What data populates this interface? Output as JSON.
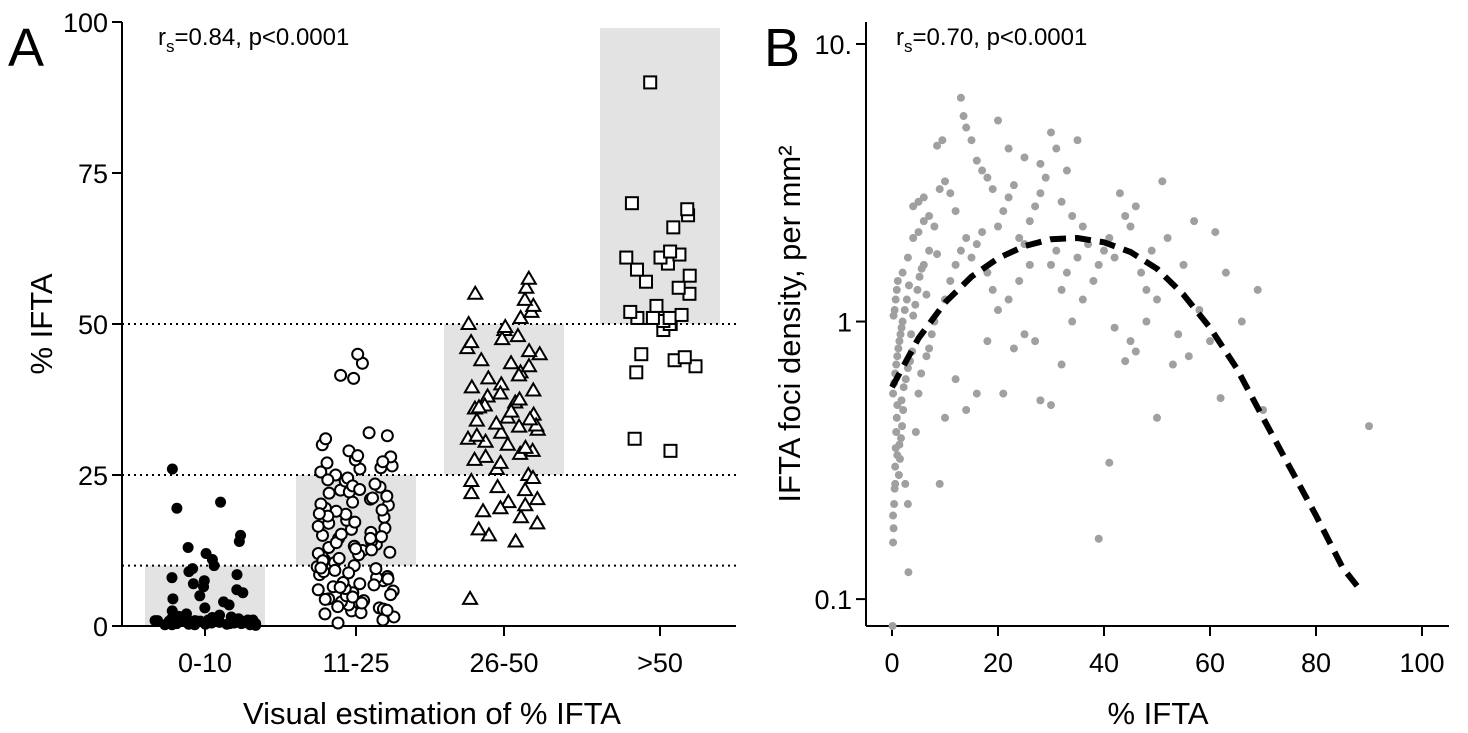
{
  "chart_data": [
    {
      "panel": "A",
      "type": "scatter",
      "chart_subtype": "categorical dot plot with shaded range boxes",
      "annotation": {
        "prefix": "r",
        "subscript": "s",
        "suffix": "=0.84, p<0.0001"
      },
      "xlabel": "Visual estimation of % IFTA",
      "ylabel": "% IFTA",
      "ylim": [
        0,
        100
      ],
      "yticks": [
        0,
        25,
        50,
        75,
        100
      ],
      "categories": [
        "0-10",
        "11-25",
        "26-50",
        ">50"
      ],
      "reference_lines": [
        10,
        25,
        50
      ],
      "shaded_ranges": [
        {
          "category": "0-10",
          "ymin": 0,
          "ymax": 10
        },
        {
          "category": "11-25",
          "ymin": 10,
          "ymax": 25
        },
        {
          "category": "26-50",
          "ymin": 25,
          "ymax": 50
        },
        {
          "category": ">50",
          "ymin": 50,
          "ymax": 99
        }
      ],
      "series": [
        {
          "category": "0-10",
          "marker": "filled-circle",
          "values": [
            0.2,
            0.4,
            0.6,
            0.8,
            1.0,
            1.2,
            1.5,
            0.3,
            0.5,
            0.7,
            0.9,
            1.1,
            1.3,
            0.2,
            0.4,
            0.6,
            0.8,
            1.0,
            0.1,
            0.3,
            0.5,
            0.7,
            0.9,
            1.1,
            0.2,
            0.4,
            0.6,
            0.8,
            1.0,
            1.2,
            0.3,
            0.5,
            0.7,
            0.9,
            1.4,
            0.2,
            0.6,
            1.0,
            1.6,
            2.0,
            0.5,
            0.8,
            1.8,
            2.5,
            3.0,
            3.5,
            4.0,
            4.5,
            5.0,
            5.5,
            6.0,
            6.5,
            7.0,
            7.5,
            8.0,
            8.5,
            9.0,
            9.5,
            10.0,
            11.0,
            12.0,
            13.0,
            14.0,
            15.0,
            19.5,
            20.5,
            26.0,
            0.4,
            1.0,
            0.7
          ]
        },
        {
          "category": "11-25",
          "marker": "open-circle",
          "values": [
            0.5,
            1.5,
            2,
            2.5,
            3,
            3.5,
            4,
            4.5,
            5,
            5.5,
            6,
            6.5,
            7,
            7.5,
            8,
            8.5,
            9,
            9.5,
            10,
            10.5,
            11,
            11.5,
            12,
            12.5,
            13,
            13.5,
            14,
            14.5,
            15,
            15.5,
            16,
            16.5,
            17,
            17.5,
            18,
            18.5,
            19,
            19.5,
            20,
            20.5,
            21,
            21.5,
            22,
            22.5,
            23,
            23.5,
            24,
            24.5,
            25,
            25.5,
            26,
            26.5,
            27,
            27.5,
            28,
            29,
            30,
            31,
            31.5,
            32,
            41,
            41.5,
            43.5,
            45,
            1,
            2.8,
            3.2,
            4.2,
            5.8,
            6.2,
            7.2,
            8.2,
            9.2,
            11.2,
            12.2,
            13.2,
            14.5,
            16.2,
            18.2,
            20.2,
            22.2,
            24.2,
            26.2,
            28.2,
            2.2,
            3.8,
            4.8,
            6.8,
            7.8,
            8.8,
            9.8,
            10.8,
            11.8,
            12.8,
            13.8,
            15.2,
            17.2,
            19.2,
            21.2,
            23.2,
            2.6,
            4.4,
            5.2,
            6.4,
            9.6,
            12.6,
            14.8,
            18.6,
            22.6,
            27.2
          ]
        },
        {
          "category": "26-50",
          "marker": "open-triangle",
          "values": [
            4.5,
            14,
            15,
            16,
            17,
            18,
            19,
            20,
            21,
            22,
            23,
            24,
            25,
            26,
            27,
            28,
            29,
            30,
            31,
            32,
            33,
            34,
            35,
            36,
            37,
            38,
            39,
            40,
            41,
            42,
            43,
            44,
            45,
            46,
            47,
            48,
            49,
            50,
            51,
            52,
            53,
            54,
            55,
            56,
            57.5,
            28.5,
            30.5,
            32.5,
            33.5,
            34.5,
            35.5,
            36.5,
            37.5,
            38.5,
            31.5,
            33.2,
            34.2,
            29.5,
            27.5,
            24.5,
            22.5,
            20.5,
            19.5,
            41.5,
            43.5,
            45.5,
            47.5,
            49.5,
            39.5,
            36.2
          ]
        },
        {
          "category": ">50",
          "marker": "open-square",
          "values": [
            29,
            31,
            42,
            43,
            44,
            44.5,
            45,
            49,
            50,
            50,
            50.5,
            51,
            51,
            51,
            51.5,
            52,
            53,
            55,
            56,
            57,
            58,
            59,
            60,
            61,
            61,
            61.5,
            62,
            66,
            68,
            69,
            70,
            90
          ]
        }
      ]
    },
    {
      "panel": "B",
      "type": "scatter",
      "annotation": {
        "prefix": "r",
        "subscript": "s",
        "suffix": "=0.70, p<0.0001"
      },
      "xlabel": "% IFTA",
      "ylabel": "IFTA foci density, per mm²",
      "xlim": [
        -3,
        102
      ],
      "xticks": [
        0,
        20,
        40,
        60,
        80,
        100
      ],
      "ylim": [
        0.08,
        12
      ],
      "yscale": "log",
      "yticks": [
        0.1,
        1,
        10
      ],
      "ytick_labels": [
        "0.1",
        "1",
        "10."
      ],
      "point_color": "#a0a0a0",
      "points": [
        [
          0.1,
          0.08
        ],
        [
          0.2,
          0.16
        ],
        [
          0.3,
          0.18
        ],
        [
          0.4,
          0.22
        ],
        [
          0.5,
          0.25
        ],
        [
          0.6,
          0.3
        ],
        [
          0.7,
          0.35
        ],
        [
          0.8,
          0.4
        ],
        [
          0.9,
          0.45
        ],
        [
          1.0,
          0.5
        ],
        [
          0.2,
          0.55
        ],
        [
          0.4,
          0.6
        ],
        [
          0.6,
          0.65
        ],
        [
          0.8,
          0.7
        ],
        [
          1.0,
          0.75
        ],
        [
          1.2,
          0.8
        ],
        [
          1.4,
          0.85
        ],
        [
          1.6,
          0.9
        ],
        [
          1.8,
          0.95
        ],
        [
          2.0,
          1.0
        ],
        [
          0.3,
          1.05
        ],
        [
          0.5,
          1.1
        ],
        [
          0.7,
          1.2
        ],
        [
          0.9,
          1.3
        ],
        [
          1.1,
          1.4
        ],
        [
          1.3,
          0.28
        ],
        [
          1.5,
          0.32
        ],
        [
          1.7,
          0.38
        ],
        [
          1.9,
          0.42
        ],
        [
          2.1,
          0.48
        ],
        [
          0.2,
          0.2
        ],
        [
          0.6,
          0.26
        ],
        [
          1.0,
          0.33
        ],
        [
          1.4,
          0.36
        ],
        [
          1.8,
          0.52
        ],
        [
          2.2,
          0.58
        ],
        [
          2.6,
          0.62
        ],
        [
          3.0,
          0.68
        ],
        [
          3.4,
          0.72
        ],
        [
          3.8,
          0.78
        ],
        [
          2.4,
          1.1
        ],
        [
          2.8,
          1.2
        ],
        [
          3.2,
          1.35
        ],
        [
          3.6,
          0.9
        ],
        [
          4.0,
          1.05
        ],
        [
          4.4,
          1.15
        ],
        [
          4.8,
          1.3
        ],
        [
          5.2,
          1.45
        ],
        [
          5.6,
          1.55
        ],
        [
          6.0,
          1.6
        ],
        [
          3.1,
          0.125
        ],
        [
          3.0,
          0.22
        ],
        [
          2.5,
          0.26
        ],
        [
          4.5,
          0.4
        ],
        [
          5.0,
          0.55
        ],
        [
          5.5,
          0.65
        ],
        [
          6.5,
          0.75
        ],
        [
          7.0,
          0.8
        ],
        [
          7.5,
          0.9
        ],
        [
          8.0,
          1.0
        ],
        [
          4.0,
          2.6
        ],
        [
          5.0,
          2.7
        ],
        [
          6.0,
          2.8
        ],
        [
          7.0,
          2.4
        ],
        [
          8.0,
          2.2
        ],
        [
          9.0,
          3.0
        ],
        [
          10.0,
          3.2
        ],
        [
          11.0,
          2.9
        ],
        [
          12.0,
          2.5
        ],
        [
          8.5,
          4.3
        ],
        [
          9.5,
          4.5
        ],
        [
          13.0,
          6.4
        ],
        [
          13.5,
          5.5
        ],
        [
          14.0,
          5.0
        ],
        [
          15.0,
          4.5
        ],
        [
          16.0,
          3.8
        ],
        [
          17.0,
          3.5
        ],
        [
          18.0,
          3.3
        ],
        [
          19.0,
          3.0
        ],
        [
          20.0,
          5.3
        ],
        [
          10.0,
          1.2
        ],
        [
          11.0,
          1.4
        ],
        [
          12.0,
          1.6
        ],
        [
          13.0,
          1.8
        ],
        [
          14.0,
          2.0
        ],
        [
          15.0,
          1.7
        ],
        [
          16.0,
          1.9
        ],
        [
          17.0,
          2.1
        ],
        [
          18.0,
          1.5
        ],
        [
          19.0,
          1.3
        ],
        [
          9.0,
          0.26
        ],
        [
          10.0,
          0.45
        ],
        [
          12.0,
          0.62
        ],
        [
          14.0,
          0.48
        ],
        [
          16.0,
          0.55
        ],
        [
          18.0,
          0.85
        ],
        [
          20.0,
          1.1
        ],
        [
          22.0,
          1.2
        ],
        [
          24.0,
          1.4
        ],
        [
          26.0,
          1.6
        ],
        [
          20.0,
          2.2
        ],
        [
          21.0,
          2.5
        ],
        [
          22.0,
          2.8
        ],
        [
          23.0,
          3.1
        ],
        [
          24.0,
          2.0
        ],
        [
          25.0,
          1.9
        ],
        [
          26.0,
          2.3
        ],
        [
          27.0,
          2.6
        ],
        [
          28.0,
          2.9
        ],
        [
          29.0,
          3.3
        ],
        [
          22.0,
          4.2
        ],
        [
          25.0,
          3.9
        ],
        [
          30.0,
          4.8
        ],
        [
          31.0,
          4.2
        ],
        [
          33.0,
          3.5
        ],
        [
          35.0,
          4.5
        ],
        [
          28.0,
          3.7
        ],
        [
          32.0,
          2.7
        ],
        [
          34.0,
          2.4
        ],
        [
          36.0,
          2.2
        ],
        [
          21.0,
          0.55
        ],
        [
          23.0,
          0.8
        ],
        [
          25.0,
          0.9
        ],
        [
          27.0,
          0.85
        ],
        [
          28.0,
          0.52
        ],
        [
          30.0,
          0.5
        ],
        [
          32.0,
          0.7
        ],
        [
          34.0,
          1.0
        ],
        [
          36.0,
          1.2
        ],
        [
          38.0,
          1.4
        ],
        [
          30.0,
          1.6
        ],
        [
          31.0,
          1.8
        ],
        [
          32.0,
          1.3
        ],
        [
          33.0,
          1.5
        ],
        [
          35.0,
          1.7
        ],
        [
          37.0,
          1.9
        ],
        [
          39.0,
          1.6
        ],
        [
          40.0,
          1.8
        ],
        [
          41.0,
          2.0
        ],
        [
          42.0,
          1.7
        ],
        [
          39.0,
          0.165
        ],
        [
          41.0,
          0.31
        ],
        [
          42.0,
          0.95
        ],
        [
          43.0,
          2.9
        ],
        [
          44.0,
          2.4
        ],
        [
          45.0,
          2.2
        ],
        [
          46.0,
          2.6
        ],
        [
          47.0,
          1.5
        ],
        [
          48.0,
          1.3
        ],
        [
          49.0,
          1.8
        ],
        [
          44.0,
          0.72
        ],
        [
          45.0,
          0.85
        ],
        [
          46.0,
          0.78
        ],
        [
          48.0,
          1.0
        ],
        [
          50.0,
          1.2
        ],
        [
          51.0,
          3.2
        ],
        [
          52.0,
          2.0
        ],
        [
          53.0,
          0.7
        ],
        [
          54.0,
          0.9
        ],
        [
          55.0,
          1.6
        ],
        [
          50.0,
          0.45
        ],
        [
          56.0,
          0.75
        ],
        [
          57.0,
          2.3
        ],
        [
          58.0,
          1.1
        ],
        [
          60.0,
          0.85
        ],
        [
          61.0,
          2.1
        ],
        [
          62.0,
          0.53
        ],
        [
          63.0,
          1.5
        ],
        [
          66.0,
          1.0
        ],
        [
          69.0,
          1.3
        ],
        [
          70.0,
          0.48
        ],
        [
          90.0,
          0.42
        ],
        [
          5.0,
          2.1
        ],
        [
          6.0,
          2.3
        ],
        [
          7.0,
          1.8
        ],
        [
          3.0,
          1.7
        ],
        [
          4.0,
          2.0
        ],
        [
          2.0,
          1.5
        ],
        [
          6.5,
          1.25
        ],
        [
          8.5,
          1.75
        ]
      ],
      "trend_line": {
        "style": "dashed",
        "color": "#000000",
        "x": [
          0,
          5,
          10,
          15,
          20,
          25,
          30,
          35,
          40,
          45,
          50,
          55,
          60,
          65,
          70,
          75,
          80,
          85,
          88
        ],
        "y": [
          0.58,
          0.87,
          1.17,
          1.45,
          1.69,
          1.87,
          1.98,
          2.0,
          1.93,
          1.78,
          1.55,
          1.25,
          0.95,
          0.68,
          0.45,
          0.3,
          0.2,
          0.13,
          0.11
        ]
      }
    }
  ]
}
